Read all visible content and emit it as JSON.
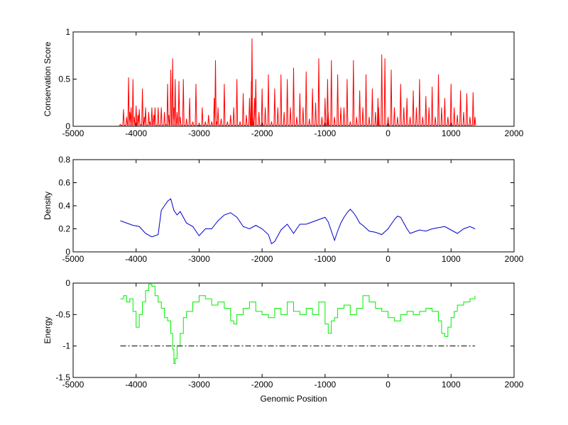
{
  "colors": {
    "conservation": "#ff0000",
    "density": "#0000cc",
    "energy": "#00ee00",
    "threshold": "#000000"
  },
  "chart_data": [
    {
      "type": "line",
      "ylabel": "Conservation Score",
      "xlim": [
        -5000,
        2000
      ],
      "ylim": [
        0,
        1
      ],
      "xticks": [
        -5000,
        -4000,
        -3000,
        -2000,
        -1000,
        0,
        1000,
        2000
      ],
      "yticks": [
        0,
        0.5,
        1
      ],
      "series": [
        {
          "style": "spiky",
          "x": [
            -4250,
            -4200,
            -4150,
            -4120,
            -4100,
            -4080,
            -4050,
            -4030,
            -4000,
            -3970,
            -3950,
            -3920,
            -3900,
            -3870,
            -3850,
            -3800,
            -3780,
            -3750,
            -3720,
            -3700,
            -3650,
            -3600,
            -3550,
            -3520,
            -3500,
            -3480,
            -3450,
            -3420,
            -3400,
            -3380,
            -3350,
            -3320,
            -3300,
            -3250,
            -3200,
            -3150,
            -3100,
            -3050,
            -3000,
            -2950,
            -2900,
            -2850,
            -2800,
            -2760,
            -2740,
            -2720,
            -2700,
            -2650,
            -2600,
            -2550,
            -2500,
            -2450,
            -2400,
            -2350,
            -2300,
            -2250,
            -2200,
            -2170,
            -2160,
            -2150,
            -2120,
            -2100,
            -2050,
            -2000,
            -1950,
            -1900,
            -1850,
            -1800,
            -1750,
            -1700,
            -1650,
            -1600,
            -1550,
            -1500,
            -1450,
            -1400,
            -1350,
            -1300,
            -1250,
            -1200,
            -1150,
            -1100,
            -1050,
            -1000,
            -960,
            -950,
            -900,
            -850,
            -800,
            -750,
            -700,
            -650,
            -600,
            -550,
            -500,
            -450,
            -400,
            -350,
            -300,
            -250,
            -200,
            -160,
            -150,
            -100,
            -50,
            0,
            50,
            100,
            150,
            200,
            250,
            300,
            350,
            400,
            450,
            500,
            550,
            600,
            650,
            700,
            750,
            800,
            850,
            900,
            950,
            1000,
            1050,
            1100,
            1150,
            1200,
            1250,
            1300,
            1350,
            1380
          ],
          "y": [
            0.02,
            0.18,
            0.1,
            0.52,
            0.15,
            0.2,
            0.5,
            0.1,
            0.22,
            0.12,
            0.18,
            0.02,
            0.4,
            0.1,
            0.2,
            0.15,
            0.05,
            0.2,
            0.12,
            0.2,
            0.2,
            0.2,
            0.15,
            0.02,
            0.45,
            0.12,
            0.6,
            0.72,
            0.2,
            0.5,
            0.15,
            0.48,
            0.1,
            0.5,
            0.08,
            0.3,
            0.05,
            0.45,
            0.02,
            0.2,
            0.05,
            0.12,
            0.05,
            0.3,
            0.7,
            0.05,
            0.2,
            0.08,
            0.45,
            0.05,
            0.12,
            0.2,
            0.5,
            0.05,
            0.35,
            0.12,
            0.3,
            0.48,
            0.93,
            0.1,
            0.3,
            0.5,
            0.15,
            0.4,
            0.2,
            0.55,
            0.05,
            0.4,
            0.2,
            0.55,
            0.15,
            0.5,
            0.2,
            0.62,
            0.1,
            0.35,
            0.2,
            0.58,
            0.08,
            0.4,
            0.25,
            0.72,
            0.1,
            0.3,
            0.5,
            0.15,
            0.7,
            0.1,
            0.55,
            0.2,
            0.2,
            0.5,
            0.05,
            0.7,
            0.1,
            0.38,
            0.2,
            0.55,
            0.1,
            0.4,
            0.15,
            0.3,
            0.2,
            0.76,
            0.72,
            0.1,
            0.6,
            0.2,
            0.1,
            0.45,
            0.2,
            0.3,
            0.1,
            0.38,
            0.2,
            0.5,
            0.1,
            0.32,
            0.2,
            0.42,
            0.1,
            0.55,
            0.2,
            0.3,
            0.1,
            0.45,
            0.2,
            0.12,
            0.38,
            0.15,
            0.35,
            0.1,
            0.36,
            0.1
          ]
        }
      ]
    },
    {
      "type": "line",
      "ylabel": "Density",
      "xlim": [
        -5000,
        2000
      ],
      "ylim": [
        0,
        0.8
      ],
      "xticks": [
        -5000,
        -4000,
        -3000,
        -2000,
        -1000,
        0,
        1000,
        2000
      ],
      "yticks": [
        0,
        0.2,
        0.4,
        0.6,
        0.8
      ],
      "series": [
        {
          "style": "smooth",
          "x": [
            -4250,
            -4150,
            -4050,
            -3950,
            -3850,
            -3750,
            -3650,
            -3600,
            -3550,
            -3500,
            -3450,
            -3400,
            -3350,
            -3300,
            -3200,
            -3100,
            -3000,
            -2900,
            -2800,
            -2700,
            -2600,
            -2500,
            -2400,
            -2300,
            -2200,
            -2100,
            -2000,
            -1900,
            -1850,
            -1800,
            -1750,
            -1700,
            -1600,
            -1500,
            -1400,
            -1300,
            -1200,
            -1100,
            -1000,
            -950,
            -900,
            -850,
            -800,
            -750,
            -700,
            -650,
            -600,
            -550,
            -500,
            -450,
            -400,
            -300,
            -200,
            -100,
            0,
            100,
            150,
            200,
            250,
            300,
            350,
            400,
            500,
            600,
            700,
            800,
            900,
            1000,
            1100,
            1200,
            1300,
            1380
          ],
          "y": [
            0.27,
            0.25,
            0.23,
            0.22,
            0.16,
            0.13,
            0.15,
            0.36,
            0.4,
            0.44,
            0.46,
            0.36,
            0.32,
            0.35,
            0.25,
            0.22,
            0.14,
            0.2,
            0.2,
            0.27,
            0.32,
            0.34,
            0.3,
            0.22,
            0.2,
            0.23,
            0.2,
            0.15,
            0.07,
            0.09,
            0.14,
            0.19,
            0.24,
            0.16,
            0.24,
            0.24,
            0.26,
            0.28,
            0.3,
            0.26,
            0.18,
            0.1,
            0.18,
            0.25,
            0.3,
            0.34,
            0.37,
            0.34,
            0.3,
            0.25,
            0.23,
            0.18,
            0.17,
            0.15,
            0.2,
            0.28,
            0.31,
            0.3,
            0.25,
            0.2,
            0.16,
            0.17,
            0.19,
            0.18,
            0.2,
            0.21,
            0.22,
            0.19,
            0.16,
            0.2,
            0.22,
            0.2
          ]
        }
      ]
    },
    {
      "type": "line",
      "xlabel": "Genomic Position",
      "ylabel": "Energy",
      "xlim": [
        -5000,
        2000
      ],
      "ylim": [
        -1.5,
        0
      ],
      "xticks": [
        -5000,
        -4000,
        -3000,
        -2000,
        -1000,
        0,
        1000,
        2000
      ],
      "yticks": [
        -1.5,
        -1,
        -0.5,
        0
      ],
      "series": [
        {
          "style": "step",
          "x": [
            -4250,
            -4200,
            -4150,
            -4100,
            -4050,
            -4000,
            -3950,
            -3900,
            -3850,
            -3800,
            -3750,
            -3700,
            -3650,
            -3600,
            -3550,
            -3500,
            -3450,
            -3420,
            -3400,
            -3380,
            -3350,
            -3300,
            -3250,
            -3200,
            -3100,
            -3000,
            -2900,
            -2800,
            -2700,
            -2600,
            -2500,
            -2450,
            -2400,
            -2300,
            -2200,
            -2100,
            -2000,
            -1900,
            -1800,
            -1700,
            -1600,
            -1500,
            -1400,
            -1300,
            -1200,
            -1100,
            -1000,
            -950,
            -900,
            -850,
            -800,
            -700,
            -600,
            -500,
            -400,
            -300,
            -200,
            -100,
            0,
            100,
            200,
            300,
            400,
            500,
            600,
            700,
            800,
            850,
            900,
            950,
            1000,
            1050,
            1100,
            1200,
            1300,
            1380
          ],
          "y": [
            -0.25,
            -0.2,
            -0.3,
            -0.25,
            -0.45,
            -0.7,
            -0.5,
            -0.3,
            -0.12,
            -0.02,
            -0.05,
            -0.2,
            -0.3,
            -0.4,
            -0.55,
            -0.6,
            -0.8,
            -1.05,
            -1.28,
            -1.2,
            -1.0,
            -0.8,
            -0.55,
            -0.45,
            -0.3,
            -0.2,
            -0.25,
            -0.35,
            -0.3,
            -0.4,
            -0.6,
            -0.65,
            -0.5,
            -0.4,
            -0.3,
            -0.45,
            -0.5,
            -0.55,
            -0.4,
            -0.5,
            -0.3,
            -0.45,
            -0.5,
            -0.4,
            -0.5,
            -0.3,
            -0.65,
            -0.8,
            -0.6,
            -0.55,
            -0.4,
            -0.35,
            -0.5,
            -0.4,
            -0.2,
            -0.3,
            -0.4,
            -0.45,
            -0.55,
            -0.6,
            -0.5,
            -0.45,
            -0.5,
            -0.45,
            -0.4,
            -0.45,
            -0.6,
            -0.8,
            -0.85,
            -0.7,
            -0.55,
            -0.45,
            -0.35,
            -0.3,
            -0.25,
            -0.2
          ]
        },
        {
          "style": "dash-dot",
          "x": [
            -4250,
            1380
          ],
          "y": [
            -1,
            -1
          ]
        }
      ]
    }
  ]
}
